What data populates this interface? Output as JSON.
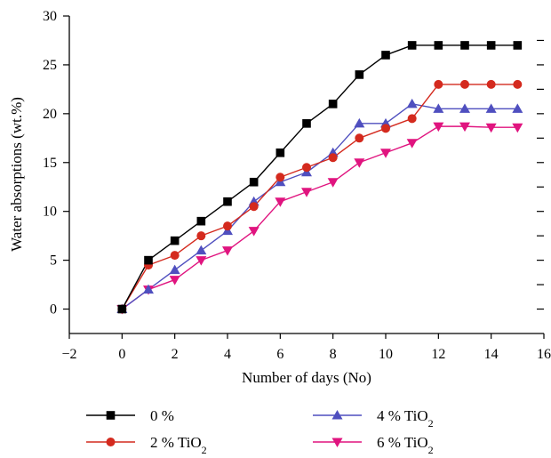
{
  "chart_data": {
    "type": "line",
    "title": "",
    "xlabel": "Number of days (No)",
    "ylabel": "Water absorptions (wt.%)",
    "xlim": [
      -2,
      16
    ],
    "ylim": [
      -2.5,
      30
    ],
    "xticks": [
      -2,
      0,
      2,
      4,
      6,
      8,
      10,
      12,
      14,
      16
    ],
    "yticks": [
      0,
      5,
      10,
      15,
      20,
      25,
      30
    ],
    "grid": false,
    "legend_position": "bottom",
    "series": [
      {
        "name": "0 %",
        "color": "#000000",
        "marker": "square",
        "x": [
          0,
          1,
          2,
          3,
          4,
          5,
          6,
          7,
          8,
          9,
          10,
          11,
          12,
          13,
          14,
          15
        ],
        "y": [
          0,
          5,
          7,
          9,
          11,
          13,
          16,
          19,
          21,
          24,
          26,
          27,
          27,
          27,
          27,
          27
        ]
      },
      {
        "name": "2 % TiO2",
        "color": "#d42a1e",
        "marker": "circle",
        "x": [
          0,
          1,
          2,
          3,
          4,
          5,
          6,
          7,
          8,
          9,
          10,
          11,
          12,
          13,
          14,
          15
        ],
        "y": [
          0,
          4.5,
          5.5,
          7.5,
          8.5,
          10.5,
          13.5,
          14.5,
          15.5,
          17.5,
          18.5,
          19.5,
          23,
          23,
          23,
          23
        ]
      },
      {
        "name": "4 % TiO2",
        "color": "#4f4fbf",
        "marker": "triangle-up",
        "x": [
          0,
          1,
          2,
          3,
          4,
          5,
          6,
          7,
          8,
          9,
          10,
          11,
          12,
          13,
          14,
          15
        ],
        "y": [
          0,
          2,
          4,
          6,
          8,
          11,
          13,
          14,
          16,
          19,
          19,
          21,
          20.5,
          20.5,
          20.5,
          20.5
        ]
      },
      {
        "name": "6 % TiO2",
        "color": "#e0147f",
        "marker": "triangle-down",
        "x": [
          0,
          1,
          2,
          3,
          4,
          5,
          6,
          7,
          8,
          9,
          10,
          11,
          12,
          13,
          14,
          15
        ],
        "y": [
          0,
          2,
          3,
          5,
          6,
          8,
          11,
          12,
          13,
          15,
          16,
          17,
          18.7,
          18.7,
          18.6,
          18.6
        ]
      }
    ]
  }
}
